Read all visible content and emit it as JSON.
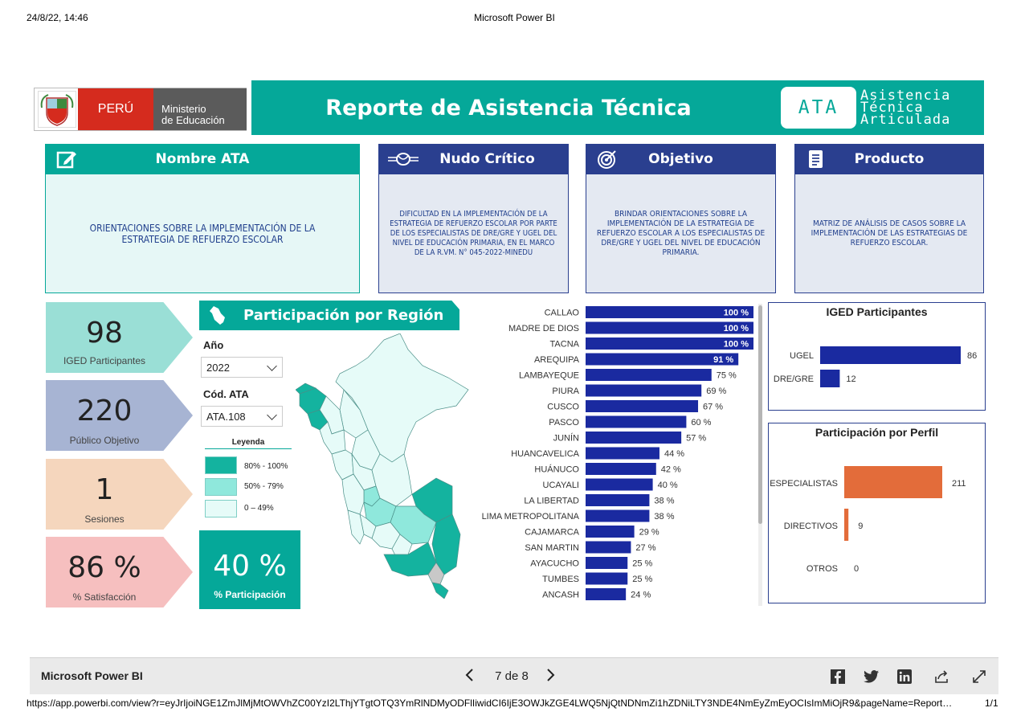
{
  "print_header": {
    "datetime": "24/8/22, 14:46",
    "title": "Microsoft Power BI"
  },
  "logo": {
    "country": "PERÚ",
    "ministry_line1": "Ministerio",
    "ministry_line2": "de Educación"
  },
  "banner": {
    "title": "Reporte de Asistencia Técnica",
    "badge": "ATA",
    "badge_words": [
      "Asistencia",
      "Técnica",
      "Articulada"
    ]
  },
  "cards": [
    {
      "id": "nombre",
      "title": "Nombre ATA",
      "icon": "edit-icon",
      "text": "ORIENTACIONES SOBRE LA IMPLEMENTACIÓN DE LA ESTRATEGIA DE REFUERZO ESCOLAR"
    },
    {
      "id": "nudo",
      "title": "Nudo Crítico",
      "icon": "knot-icon",
      "text": "DIFICULTAD EN LA IMPLEMENTACIÓN DE LA ESTRATEGIA DE REFUERZO ESCOLAR POR PARTE DE LOS ESPECIALISTAS DE DRE/GRE Y UGEL DEL NIVEL DE EDUCACIÓN PRIMARIA, EN EL MARCO DE LA R.VM. N° 045-2022-MINEDU"
    },
    {
      "id": "objetivo",
      "title": "Objetivo",
      "icon": "target-icon",
      "text": "BRINDAR ORIENTACIONES SOBRE LA IMPLEMENTACIÓN DE LA ESTRATEGIA DE REFUERZO ESCOLAR A LOS ESPECIALISTAS DE DRE/GRE Y UGEL DEL NIVEL DE EDUCACIÓN PRIMARIA."
    },
    {
      "id": "producto",
      "title": "Producto",
      "icon": "document-icon",
      "text": "MATRIZ DE ANÁLISIS DE CASOS SOBRE LA IMPLEMENTACIÓN DE LAS ESTRATEGIAS DE REFUERZO ESCOLAR."
    }
  ],
  "kpis": [
    {
      "value": "98",
      "label": "IGED Participantes",
      "color": "#9adfd6"
    },
    {
      "value": "220",
      "label": "Público Objetivo",
      "color": "#a7b4d3"
    },
    {
      "value": "1",
      "label": "Sesiones",
      "color": "#f5d6bd"
    },
    {
      "value": "86 %",
      "label": "% Satisfacción",
      "color": "#f6bfbf"
    }
  ],
  "region_panel": {
    "title": "Participación por Región",
    "year_label": "Año",
    "year_value": "2022",
    "code_label": "Cód. ATA",
    "code_value": "ATA.108",
    "legend_title": "Leyenda",
    "legend": [
      {
        "label": "80% - 100%",
        "color": "#14b39f"
      },
      {
        "label": "50% - 79%",
        "color": "#8fe8dc"
      },
      {
        "label": "0 – 49%",
        "color": "#e6fbf8"
      }
    ],
    "participation_value": "40 %",
    "participation_label": "% Participación"
  },
  "chart_data": [
    {
      "type": "bar",
      "orientation": "horizontal",
      "categories": [
        "CALLAO",
        "MADRE DE DIOS",
        "TACNA",
        "AREQUIPA",
        "LAMBAYEQUE",
        "PIURA",
        "CUSCO",
        "PASCO",
        "JUNÍN",
        "HUANCAVELICA",
        "HUÁNUCO",
        "UCAYALI",
        "LA LIBERTAD",
        "LIMA METROPOLITANA",
        "CAJAMARCA",
        "SAN MARTIN",
        "AYACUCHO",
        "TUMBES",
        "ANCASH"
      ],
      "values": [
        100,
        100,
        100,
        91,
        75,
        69,
        67,
        60,
        57,
        44,
        42,
        40,
        38,
        38,
        29,
        27,
        25,
        25,
        24
      ],
      "labels": [
        "100 %",
        "100 %",
        "100 %",
        "91 %",
        "75 %",
        "69 %",
        "67 %",
        "60 %",
        "57 %",
        "44 %",
        "42 %",
        "40 %",
        "38 %",
        "38 %",
        "29 %",
        "27 %",
        "25 %",
        "25 %",
        "24 %"
      ],
      "xlim": [
        0,
        100
      ],
      "color": "#1a2aa0"
    },
    {
      "type": "bar",
      "orientation": "horizontal",
      "title": "IGED Participantes",
      "categories": [
        "UGEL",
        "DRE/GRE"
      ],
      "values": [
        86,
        12
      ],
      "color": "#1a2aa0"
    },
    {
      "type": "bar",
      "orientation": "horizontal",
      "title": "Participación por Perfil",
      "categories": [
        "ESPECIALISTAS",
        "DIRECTIVOS",
        "OTROS"
      ],
      "values": [
        211,
        9,
        0
      ],
      "color": "#e36c3a"
    }
  ],
  "pbi_footer": {
    "app_name": "Microsoft Power BI",
    "page_indicator": "7 de 8",
    "icons": [
      "facebook-icon",
      "twitter-icon",
      "linkedin-icon",
      "share-icon",
      "expand-icon"
    ]
  },
  "print_footer": {
    "url": "https://app.powerbi.com/view?r=eyJrIjoiNGE1ZmJlMjMtOWVhZC00YzI2LThjYTgtOTQ3YmRlNDMyODFlIiwidCI6IjE3OWJkZGE4LWQ5NjQtNDNmZi1hZDNiLTY3NDE4NmEyZmEyOCIsImMiOjR9&pageName=Report…",
    "page": "1/1"
  }
}
